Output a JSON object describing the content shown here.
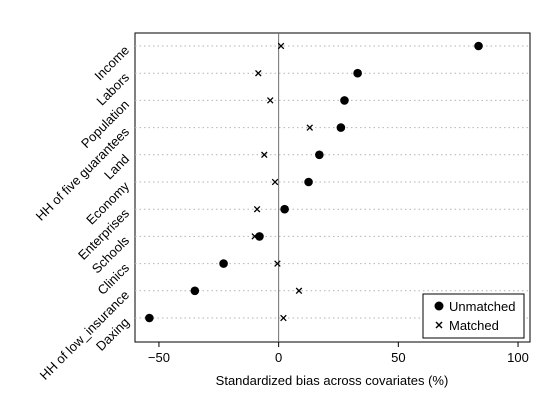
{
  "chart_data": {
    "type": "scatter",
    "title": "",
    "xlabel": "Standardized bias across covariates (%)",
    "ylabel": "",
    "xlim": [
      -60,
      105
    ],
    "xticks": [
      -50,
      0,
      50,
      100
    ],
    "zero_line": 0,
    "categories": [
      "Income",
      "Labors",
      "Population",
      "HH of five guarantees",
      "Land",
      "Economy",
      "Enterprises",
      "Schools",
      "Clinics",
      "HH of low_insurance",
      "Daxing"
    ],
    "series": [
      {
        "name": "Unmatched",
        "marker": "filled-circle",
        "values": [
          83.5,
          33,
          27.5,
          26,
          17,
          12.5,
          2.5,
          -8,
          -23,
          -35,
          -54
        ]
      },
      {
        "name": "Matched",
        "marker": "x",
        "values": [
          1,
          -8.5,
          -3.5,
          13,
          -6,
          -1.5,
          -9,
          -10,
          -0.5,
          8.5,
          2
        ]
      }
    ],
    "legend": "bottom-right",
    "grid": "horizontal dotted",
    "colors": {
      "marker": "#000000",
      "axis": "#000000",
      "grid": "#b4b4b4",
      "zero_line": "#6e6e6e"
    }
  }
}
